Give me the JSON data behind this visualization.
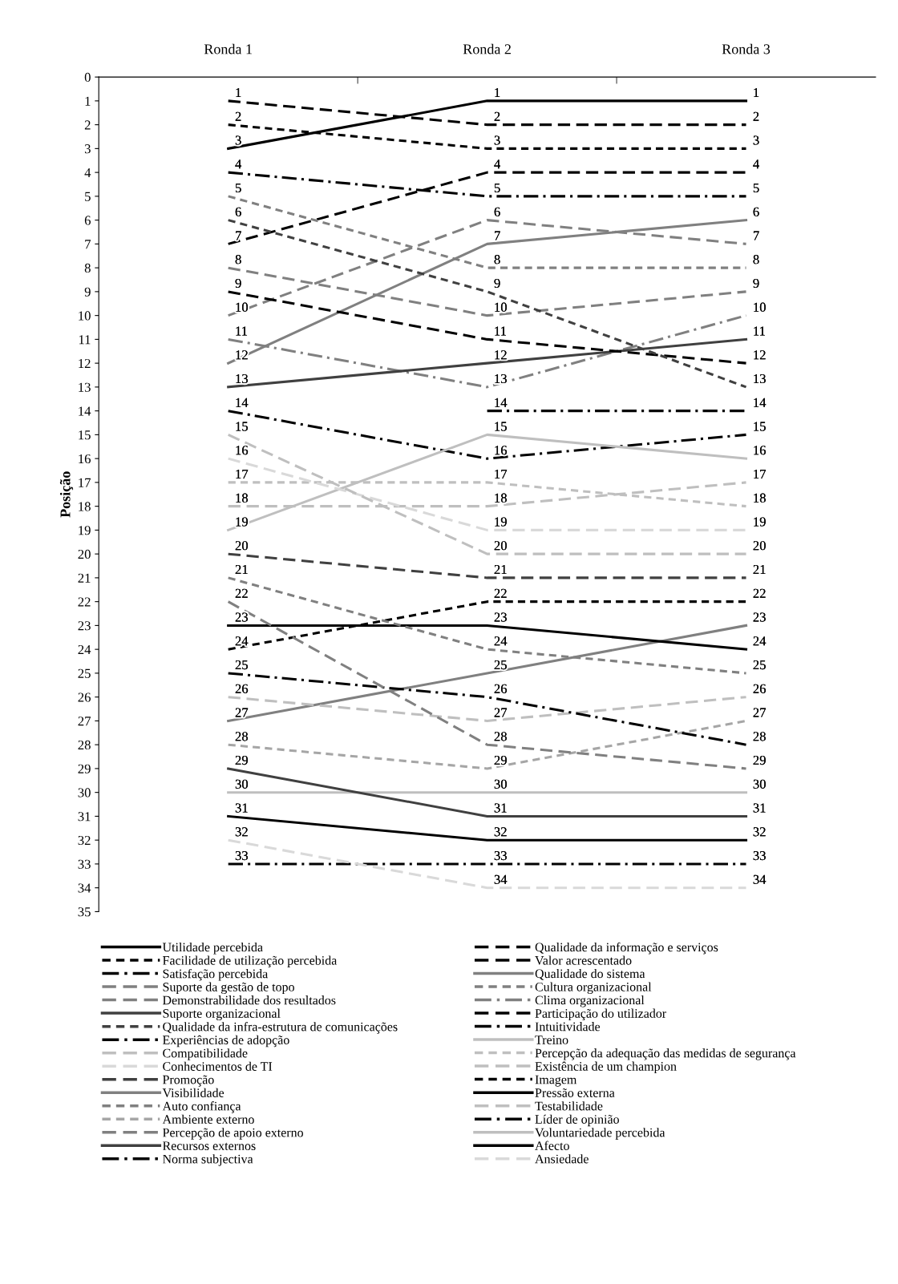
{
  "chart_data": {
    "type": "line",
    "ylabel": "Posição",
    "categories": [
      "Ronda 1",
      "Ronda 2",
      "Ronda 3"
    ],
    "ylim": [
      35,
      0
    ],
    "yticks": [
      0,
      1,
      2,
      3,
      4,
      5,
      6,
      7,
      8,
      9,
      10,
      11,
      12,
      13,
      14,
      15,
      16,
      17,
      18,
      19,
      20,
      21,
      22,
      23,
      24,
      25,
      26,
      27,
      28,
      29,
      30,
      31,
      32,
      33,
      34,
      35
    ],
    "grid": false,
    "legend": "bottom",
    "data_labels": true,
    "marker": "none",
    "series": [
      {
        "name": "Utilidade percebida",
        "color": "#000000",
        "line_style": "solid",
        "values": [
          3,
          1,
          1
        ]
      },
      {
        "name": "Qualidade da informação e serviços",
        "color": "#000000",
        "line_style": "dashed",
        "values": [
          1,
          2,
          2
        ]
      },
      {
        "name": "Facilidade de utilização percebida",
        "color": "#000000",
        "line_style": "dotted",
        "values": [
          2,
          3,
          3
        ]
      },
      {
        "name": "Valor acrescentado",
        "color": "#000000",
        "line_style": "dashed",
        "values": [
          7,
          4,
          4
        ]
      },
      {
        "name": "Satisfação percebida",
        "color": "#000000",
        "line_style": "dashdot",
        "values": [
          4,
          5,
          5
        ]
      },
      {
        "name": "Qualidade do sistema",
        "color": "#808080",
        "line_style": "solid",
        "values": [
          12,
          7,
          6
        ]
      },
      {
        "name": "Suporte da gestão de topo",
        "color": "#808080",
        "line_style": "dashed",
        "values": [
          10,
          6,
          7
        ]
      },
      {
        "name": "Cultura organizacional",
        "color": "#808080",
        "line_style": "dotted",
        "values": [
          5,
          8,
          8
        ]
      },
      {
        "name": "Demonstrabilidade dos resultados",
        "color": "#808080",
        "line_style": "dashed",
        "values": [
          8,
          10,
          9
        ]
      },
      {
        "name": "Clima organizacional",
        "color": "#808080",
        "line_style": "dashdot",
        "values": [
          11,
          13,
          10
        ]
      },
      {
        "name": "Suporte organizacional",
        "color": "#404040",
        "line_style": "solid",
        "values": [
          13,
          12,
          11
        ]
      },
      {
        "name": "Participação do utilizador",
        "color": "#000000",
        "line_style": "dashed",
        "values": [
          9,
          11,
          12
        ]
      },
      {
        "name": "Qualidade da infra-estrutura de comunicações",
        "color": "#404040",
        "line_style": "dotted",
        "values": [
          6,
          9,
          13
        ]
      },
      {
        "name": "Intuitividade",
        "color": "#000000",
        "line_style": "dashdot",
        "values": [
          null,
          14,
          14
        ]
      },
      {
        "name": "Experiências de adopção",
        "color": "#000000",
        "line_style": "dashdot",
        "values": [
          14,
          16,
          15
        ]
      },
      {
        "name": "Treino",
        "color": "#bfbfbf",
        "line_style": "solid",
        "values": [
          19,
          15,
          16
        ]
      },
      {
        "name": "Compatibilidade",
        "color": "#bfbfbf",
        "line_style": "dashed",
        "values": [
          18,
          18,
          17
        ]
      },
      {
        "name": "Percepção da adequação das medidas de segurança",
        "color": "#bfbfbf",
        "line_style": "dotted",
        "values": [
          17,
          17,
          18
        ]
      },
      {
        "name": "Conhecimentos de TI",
        "color": "#d9d9d9",
        "line_style": "dashed",
        "values": [
          16,
          19,
          19
        ]
      },
      {
        "name": "Existência de um champion",
        "color": "#bfbfbf",
        "line_style": "dashed",
        "values": [
          15,
          20,
          20
        ]
      },
      {
        "name": "Promoção",
        "color": "#404040",
        "line_style": "dashed",
        "values": [
          20,
          21,
          21
        ]
      },
      {
        "name": "Imagem",
        "color": "#000000",
        "line_style": "dotted",
        "values": [
          24,
          22,
          22
        ]
      },
      {
        "name": "Visibilidade",
        "color": "#808080",
        "line_style": "solid",
        "values": [
          27,
          25,
          23
        ]
      },
      {
        "name": "Pressão externa",
        "color": "#000000",
        "line_style": "solid",
        "values": [
          23,
          23,
          24
        ]
      },
      {
        "name": "Auto confiança",
        "color": "#808080",
        "line_style": "dotted",
        "values": [
          21,
          24,
          25
        ]
      },
      {
        "name": "Testabilidade",
        "color": "#bfbfbf",
        "line_style": "dashed",
        "values": [
          26,
          27,
          26
        ]
      },
      {
        "name": "Ambiente externo",
        "color": "#a6a6a6",
        "line_style": "dotted",
        "values": [
          28,
          29,
          27
        ]
      },
      {
        "name": "Líder de opinião",
        "color": "#000000",
        "line_style": "dashdot",
        "values": [
          25,
          26,
          28
        ]
      },
      {
        "name": "Percepção de apoio externo",
        "color": "#808080",
        "line_style": "dashed",
        "values": [
          22,
          28,
          29
        ]
      },
      {
        "name": "Voluntariedade percebida",
        "color": "#bfbfbf",
        "line_style": "solid",
        "values": [
          30,
          30,
          30
        ]
      },
      {
        "name": "Recursos externos",
        "color": "#404040",
        "line_style": "solid",
        "values": [
          29,
          31,
          31
        ]
      },
      {
        "name": "Afecto",
        "color": "#000000",
        "line_style": "solid",
        "values": [
          31,
          32,
          32
        ]
      },
      {
        "name": "Norma subjectiva",
        "color": "#000000",
        "line_style": "dashdot",
        "values": [
          33,
          33,
          33
        ]
      },
      {
        "name": "Ansiedade",
        "color": "#d9d9d9",
        "line_style": "dashed",
        "values": [
          32,
          34,
          34
        ]
      }
    ]
  }
}
